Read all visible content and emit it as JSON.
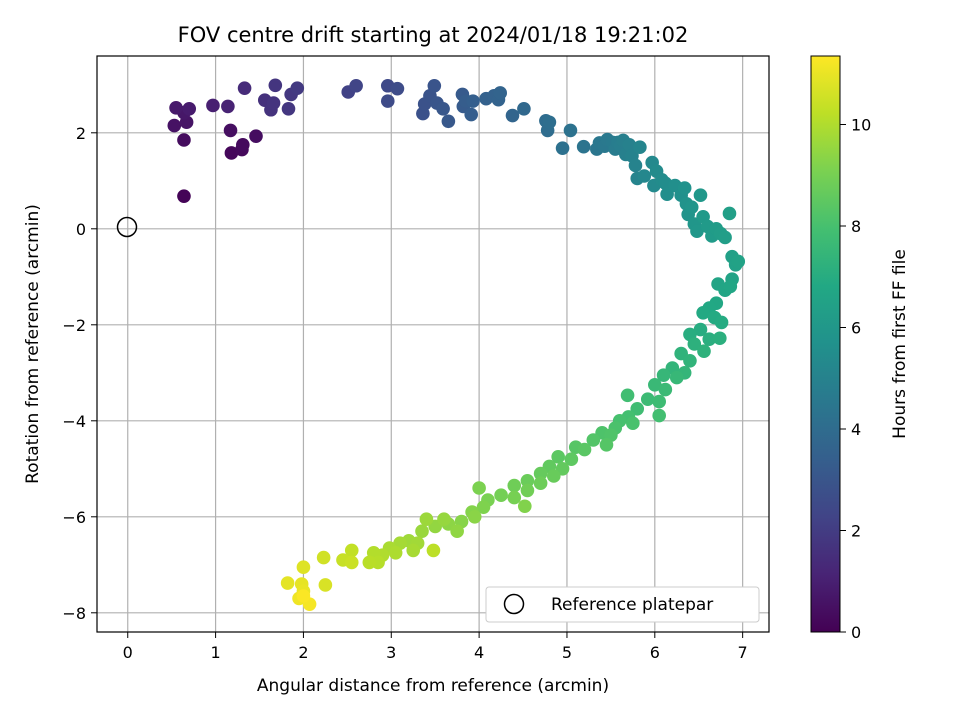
{
  "chart_data": {
    "type": "scatter",
    "title": "FOV centre drift starting at 2024/01/18 19:21:02",
    "xlabel": "Angular distance from reference (arcmin)",
    "ylabel": "Rotation from reference (arcmin)",
    "xlim": [
      -0.35,
      7.3
    ],
    "ylim": [
      -8.4,
      3.6
    ],
    "xticks": [
      0,
      1,
      2,
      3,
      4,
      5,
      6,
      7
    ],
    "yticks": [
      -8,
      -6,
      -4,
      -2,
      0,
      2
    ],
    "grid": true,
    "colormap": "viridis",
    "colorbar": {
      "label": "Hours from first FF file",
      "min": 0,
      "max": 11.35,
      "ticks": [
        0,
        2,
        4,
        6,
        8,
        10
      ]
    },
    "legend": {
      "placement": "lower-right",
      "entries": [
        {
          "label": "Reference platepar",
          "marker": "hollow-circle"
        }
      ]
    },
    "reference_point": {
      "x": 0,
      "y": 0
    },
    "points": [
      {
        "x": 0.64,
        "y": 0.68,
        "t": 0.1
      },
      {
        "x": 1.18,
        "y": 1.58,
        "t": 0.2
      },
      {
        "x": 1.3,
        "y": 1.65,
        "t": 0.25
      },
      {
        "x": 1.31,
        "y": 1.75,
        "t": 0.3
      },
      {
        "x": 0.64,
        "y": 1.85,
        "t": 0.35
      },
      {
        "x": 1.46,
        "y": 1.93,
        "t": 0.4
      },
      {
        "x": 1.17,
        "y": 2.05,
        "t": 0.45
      },
      {
        "x": 0.53,
        "y": 2.15,
        "t": 0.55
      },
      {
        "x": 0.67,
        "y": 2.22,
        "t": 0.6
      },
      {
        "x": 0.64,
        "y": 2.42,
        "t": 0.7
      },
      {
        "x": 0.55,
        "y": 2.52,
        "t": 0.8
      },
      {
        "x": 0.7,
        "y": 2.5,
        "t": 0.85
      },
      {
        "x": 0.97,
        "y": 2.57,
        "t": 1.0
      },
      {
        "x": 1.14,
        "y": 2.55,
        "t": 1.1
      },
      {
        "x": 1.33,
        "y": 2.93,
        "t": 1.4
      },
      {
        "x": 1.56,
        "y": 2.68,
        "t": 1.6
      },
      {
        "x": 1.63,
        "y": 2.48,
        "t": 1.65
      },
      {
        "x": 1.66,
        "y": 2.62,
        "t": 1.7
      },
      {
        "x": 1.68,
        "y": 2.99,
        "t": 1.75
      },
      {
        "x": 1.83,
        "y": 2.5,
        "t": 1.8
      },
      {
        "x": 1.86,
        "y": 2.8,
        "t": 1.85
      },
      {
        "x": 1.93,
        "y": 2.93,
        "t": 1.9
      },
      {
        "x": 2.51,
        "y": 2.85,
        "t": 2.2
      },
      {
        "x": 2.6,
        "y": 2.98,
        "t": 2.3
      },
      {
        "x": 2.96,
        "y": 2.98,
        "t": 2.5
      },
      {
        "x": 2.96,
        "y": 2.66,
        "t": 2.55
      },
      {
        "x": 3.07,
        "y": 2.92,
        "t": 2.6
      },
      {
        "x": 3.36,
        "y": 2.4,
        "t": 2.8
      },
      {
        "x": 3.38,
        "y": 2.6,
        "t": 2.85
      },
      {
        "x": 3.44,
        "y": 2.77,
        "t": 2.9
      },
      {
        "x": 3.49,
        "y": 2.98,
        "t": 2.95
      },
      {
        "x": 3.52,
        "y": 2.62,
        "t": 3.0
      },
      {
        "x": 3.59,
        "y": 2.5,
        "t": 3.05
      },
      {
        "x": 3.65,
        "y": 2.24,
        "t": 3.1
      },
      {
        "x": 3.81,
        "y": 2.8,
        "t": 3.2
      },
      {
        "x": 3.82,
        "y": 2.55,
        "t": 3.25
      },
      {
        "x": 3.85,
        "y": 2.66,
        "t": 3.3
      },
      {
        "x": 3.91,
        "y": 2.38,
        "t": 3.35
      },
      {
        "x": 3.93,
        "y": 2.66,
        "t": 3.4
      },
      {
        "x": 4.08,
        "y": 2.71,
        "t": 3.5
      },
      {
        "x": 4.17,
        "y": 2.77,
        "t": 3.55
      },
      {
        "x": 4.22,
        "y": 2.69,
        "t": 3.6
      },
      {
        "x": 4.24,
        "y": 2.83,
        "t": 3.65
      },
      {
        "x": 4.38,
        "y": 2.36,
        "t": 3.7
      },
      {
        "x": 4.51,
        "y": 2.5,
        "t": 3.8
      },
      {
        "x": 4.76,
        "y": 2.25,
        "t": 4.0
      },
      {
        "x": 4.78,
        "y": 2.05,
        "t": 4.05
      },
      {
        "x": 4.8,
        "y": 2.22,
        "t": 4.1
      },
      {
        "x": 4.95,
        "y": 1.68,
        "t": 4.2
      },
      {
        "x": 5.04,
        "y": 2.05,
        "t": 4.25
      },
      {
        "x": 5.19,
        "y": 1.71,
        "t": 4.35
      },
      {
        "x": 5.34,
        "y": 1.66,
        "t": 4.45
      },
      {
        "x": 5.37,
        "y": 1.79,
        "t": 4.5
      },
      {
        "x": 5.43,
        "y": 1.72,
        "t": 4.55
      },
      {
        "x": 5.46,
        "y": 1.86,
        "t": 4.6
      },
      {
        "x": 5.52,
        "y": 1.8,
        "t": 4.65
      },
      {
        "x": 5.55,
        "y": 1.66,
        "t": 4.7
      },
      {
        "x": 5.58,
        "y": 1.8,
        "t": 4.75
      },
      {
        "x": 5.61,
        "y": 1.73,
        "t": 4.8
      },
      {
        "x": 5.64,
        "y": 1.84,
        "t": 4.85
      },
      {
        "x": 5.67,
        "y": 1.55,
        "t": 4.9
      },
      {
        "x": 5.71,
        "y": 1.75,
        "t": 4.95
      },
      {
        "x": 5.74,
        "y": 1.52,
        "t": 5.0
      },
      {
        "x": 5.78,
        "y": 1.32,
        "t": 5.05
      },
      {
        "x": 5.8,
        "y": 1.05,
        "t": 5.1
      },
      {
        "x": 5.83,
        "y": 1.7,
        "t": 5.15
      },
      {
        "x": 5.88,
        "y": 1.1,
        "t": 5.2
      },
      {
        "x": 5.97,
        "y": 1.38,
        "t": 5.3
      },
      {
        "x": 5.99,
        "y": 0.9,
        "t": 5.35
      },
      {
        "x": 6.02,
        "y": 1.2,
        "t": 5.4
      },
      {
        "x": 6.08,
        "y": 1.02,
        "t": 5.45
      },
      {
        "x": 6.12,
        "y": 0.95,
        "t": 5.5
      },
      {
        "x": 6.14,
        "y": 0.72,
        "t": 5.55
      },
      {
        "x": 6.23,
        "y": 0.9,
        "t": 5.6
      },
      {
        "x": 6.3,
        "y": 0.7,
        "t": 5.65
      },
      {
        "x": 6.34,
        "y": 0.85,
        "t": 5.7
      },
      {
        "x": 6.36,
        "y": 0.52,
        "t": 5.75
      },
      {
        "x": 6.38,
        "y": 0.3,
        "t": 5.8
      },
      {
        "x": 6.42,
        "y": 0.45,
        "t": 5.85
      },
      {
        "x": 6.45,
        "y": 0.1,
        "t": 5.9
      },
      {
        "x": 6.48,
        "y": -0.05,
        "t": 5.95
      },
      {
        "x": 6.52,
        "y": 0.7,
        "t": 6.0
      },
      {
        "x": 6.55,
        "y": 0.25,
        "t": 6.05
      },
      {
        "x": 6.6,
        "y": 0.05,
        "t": 6.1
      },
      {
        "x": 6.65,
        "y": -0.15,
        "t": 6.15
      },
      {
        "x": 6.7,
        "y": 0.0,
        "t": 6.2
      },
      {
        "x": 6.75,
        "y": -0.1,
        "t": 6.25
      },
      {
        "x": 6.8,
        "y": -0.18,
        "t": 6.3
      },
      {
        "x": 6.85,
        "y": 0.32,
        "t": 6.35
      },
      {
        "x": 6.88,
        "y": -0.58,
        "t": 6.4
      },
      {
        "x": 6.92,
        "y": -0.75,
        "t": 6.45
      },
      {
        "x": 6.95,
        "y": -0.68,
        "t": 6.5
      },
      {
        "x": 6.88,
        "y": -1.05,
        "t": 6.55
      },
      {
        "x": 6.72,
        "y": -1.15,
        "t": 6.6
      },
      {
        "x": 6.8,
        "y": -1.28,
        "t": 6.65
      },
      {
        "x": 6.86,
        "y": -1.2,
        "t": 6.7
      },
      {
        "x": 6.7,
        "y": -1.55,
        "t": 6.75
      },
      {
        "x": 6.62,
        "y": -1.65,
        "t": 6.8
      },
      {
        "x": 6.55,
        "y": -1.75,
        "t": 6.85
      },
      {
        "x": 6.68,
        "y": -1.85,
        "t": 6.9
      },
      {
        "x": 6.76,
        "y": -1.95,
        "t": 6.95
      },
      {
        "x": 6.52,
        "y": -2.1,
        "t": 7.0
      },
      {
        "x": 6.4,
        "y": -2.2,
        "t": 7.05
      },
      {
        "x": 6.62,
        "y": -2.3,
        "t": 7.1
      },
      {
        "x": 6.74,
        "y": -2.28,
        "t": 7.15
      },
      {
        "x": 6.45,
        "y": -2.4,
        "t": 7.2
      },
      {
        "x": 6.56,
        "y": -2.55,
        "t": 7.25
      },
      {
        "x": 6.3,
        "y": -2.6,
        "t": 7.3
      },
      {
        "x": 6.4,
        "y": -2.75,
        "t": 7.35
      },
      {
        "x": 6.2,
        "y": -2.9,
        "t": 7.4
      },
      {
        "x": 6.34,
        "y": -3.0,
        "t": 7.45
      },
      {
        "x": 6.1,
        "y": -3.05,
        "t": 7.5
      },
      {
        "x": 6.25,
        "y": -3.1,
        "t": 7.55
      },
      {
        "x": 6.0,
        "y": -3.25,
        "t": 7.6
      },
      {
        "x": 6.12,
        "y": -3.35,
        "t": 7.65
      },
      {
        "x": 5.92,
        "y": -3.55,
        "t": 7.7
      },
      {
        "x": 6.05,
        "y": -3.6,
        "t": 7.75
      },
      {
        "x": 5.8,
        "y": -3.75,
        "t": 7.8
      },
      {
        "x": 5.69,
        "y": -3.47,
        "t": 7.85
      },
      {
        "x": 6.05,
        "y": -3.89,
        "t": 7.9
      },
      {
        "x": 5.7,
        "y": -3.92,
        "t": 7.95
      },
      {
        "x": 5.6,
        "y": -4.0,
        "t": 8.0
      },
      {
        "x": 5.75,
        "y": -4.05,
        "t": 8.05
      },
      {
        "x": 5.55,
        "y": -4.15,
        "t": 8.1
      },
      {
        "x": 5.4,
        "y": -4.25,
        "t": 8.15
      },
      {
        "x": 5.5,
        "y": -4.3,
        "t": 8.2
      },
      {
        "x": 5.3,
        "y": -4.4,
        "t": 8.25
      },
      {
        "x": 5.45,
        "y": -4.5,
        "t": 8.3
      },
      {
        "x": 5.1,
        "y": -4.55,
        "t": 8.35
      },
      {
        "x": 5.2,
        "y": -4.6,
        "t": 8.4
      },
      {
        "x": 4.9,
        "y": -4.75,
        "t": 8.45
      },
      {
        "x": 5.05,
        "y": -4.8,
        "t": 8.5
      },
      {
        "x": 4.8,
        "y": -4.95,
        "t": 8.55
      },
      {
        "x": 4.95,
        "y": -5.0,
        "t": 8.6
      },
      {
        "x": 4.7,
        "y": -5.1,
        "t": 8.65
      },
      {
        "x": 4.85,
        "y": -5.15,
        "t": 8.7
      },
      {
        "x": 4.55,
        "y": -5.25,
        "t": 8.75
      },
      {
        "x": 4.7,
        "y": -5.3,
        "t": 8.8
      },
      {
        "x": 4.4,
        "y": -5.35,
        "t": 8.85
      },
      {
        "x": 4.55,
        "y": -5.45,
        "t": 8.9
      },
      {
        "x": 4.25,
        "y": -5.55,
        "t": 8.95
      },
      {
        "x": 4.4,
        "y": -5.6,
        "t": 9.0
      },
      {
        "x": 4.1,
        "y": -5.65,
        "t": 9.05
      },
      {
        "x": 4.0,
        "y": -5.4,
        "t": 9.1
      },
      {
        "x": 4.05,
        "y": -5.8,
        "t": 9.15
      },
      {
        "x": 4.52,
        "y": -5.78,
        "t": 9.2
      },
      {
        "x": 3.92,
        "y": -5.9,
        "t": 9.25
      },
      {
        "x": 3.8,
        "y": -6.1,
        "t": 9.3
      },
      {
        "x": 3.95,
        "y": -6.0,
        "t": 9.35
      },
      {
        "x": 3.65,
        "y": -6.15,
        "t": 9.4
      },
      {
        "x": 3.75,
        "y": -6.3,
        "t": 9.45
      },
      {
        "x": 3.5,
        "y": -6.2,
        "t": 9.5
      },
      {
        "x": 3.6,
        "y": -6.05,
        "t": 9.55
      },
      {
        "x": 3.35,
        "y": -6.3,
        "t": 9.6
      },
      {
        "x": 3.4,
        "y": -6.05,
        "t": 9.65
      },
      {
        "x": 3.2,
        "y": -6.5,
        "t": 9.7
      },
      {
        "x": 3.3,
        "y": -6.55,
        "t": 9.75
      },
      {
        "x": 3.1,
        "y": -6.55,
        "t": 9.8
      },
      {
        "x": 3.25,
        "y": -6.7,
        "t": 9.85
      },
      {
        "x": 2.98,
        "y": -6.65,
        "t": 9.9
      },
      {
        "x": 3.05,
        "y": -6.75,
        "t": 9.95
      },
      {
        "x": 2.9,
        "y": -6.8,
        "t": 10.0
      },
      {
        "x": 2.8,
        "y": -6.75,
        "t": 10.05
      },
      {
        "x": 2.85,
        "y": -6.95,
        "t": 10.1
      },
      {
        "x": 2.75,
        "y": -6.95,
        "t": 10.15
      },
      {
        "x": 3.48,
        "y": -6.7,
        "t": 10.2
      },
      {
        "x": 2.55,
        "y": -6.7,
        "t": 10.3
      },
      {
        "x": 2.45,
        "y": -6.9,
        "t": 10.4
      },
      {
        "x": 2.55,
        "y": -6.95,
        "t": 10.45
      },
      {
        "x": 2.23,
        "y": -6.85,
        "t": 10.55
      },
      {
        "x": 2.25,
        "y": -7.42,
        "t": 10.7
      },
      {
        "x": 2.0,
        "y": -7.05,
        "t": 10.8
      },
      {
        "x": 1.82,
        "y": -7.38,
        "t": 10.9
      },
      {
        "x": 1.98,
        "y": -7.4,
        "t": 10.95
      },
      {
        "x": 2.0,
        "y": -7.55,
        "t": 11.0
      },
      {
        "x": 1.95,
        "y": -7.7,
        "t": 11.1
      },
      {
        "x": 2.07,
        "y": -7.82,
        "t": 11.2
      },
      {
        "x": 2.0,
        "y": -7.65,
        "t": 11.3
      }
    ]
  }
}
